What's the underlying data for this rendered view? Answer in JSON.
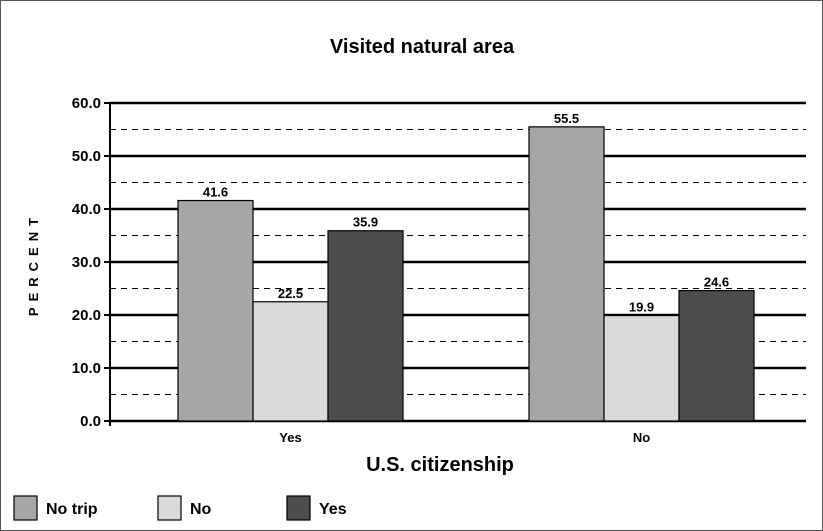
{
  "chart_data": {
    "type": "bar",
    "title": "Visited natural area",
    "xlabel": "U.S. citizenship",
    "ylabel": "PERCENT",
    "categories": [
      "Yes",
      "No"
    ],
    "series": [
      {
        "name": "No trip",
        "values": [
          41.6,
          55.5
        ],
        "color": "#a6a6a6"
      },
      {
        "name": "No",
        "values": [
          22.5,
          19.9
        ],
        "color": "#d9d9d9"
      },
      {
        "name": "Yes",
        "values": [
          35.9,
          24.6
        ],
        "color": "#4d4d4d"
      }
    ],
    "ylim": [
      0,
      60
    ],
    "yticks": [
      "0.0",
      "10.0",
      "20.0",
      "30.0",
      "40.0",
      "50.0",
      "60.0"
    ],
    "grid": true,
    "legend_position": "bottom"
  }
}
